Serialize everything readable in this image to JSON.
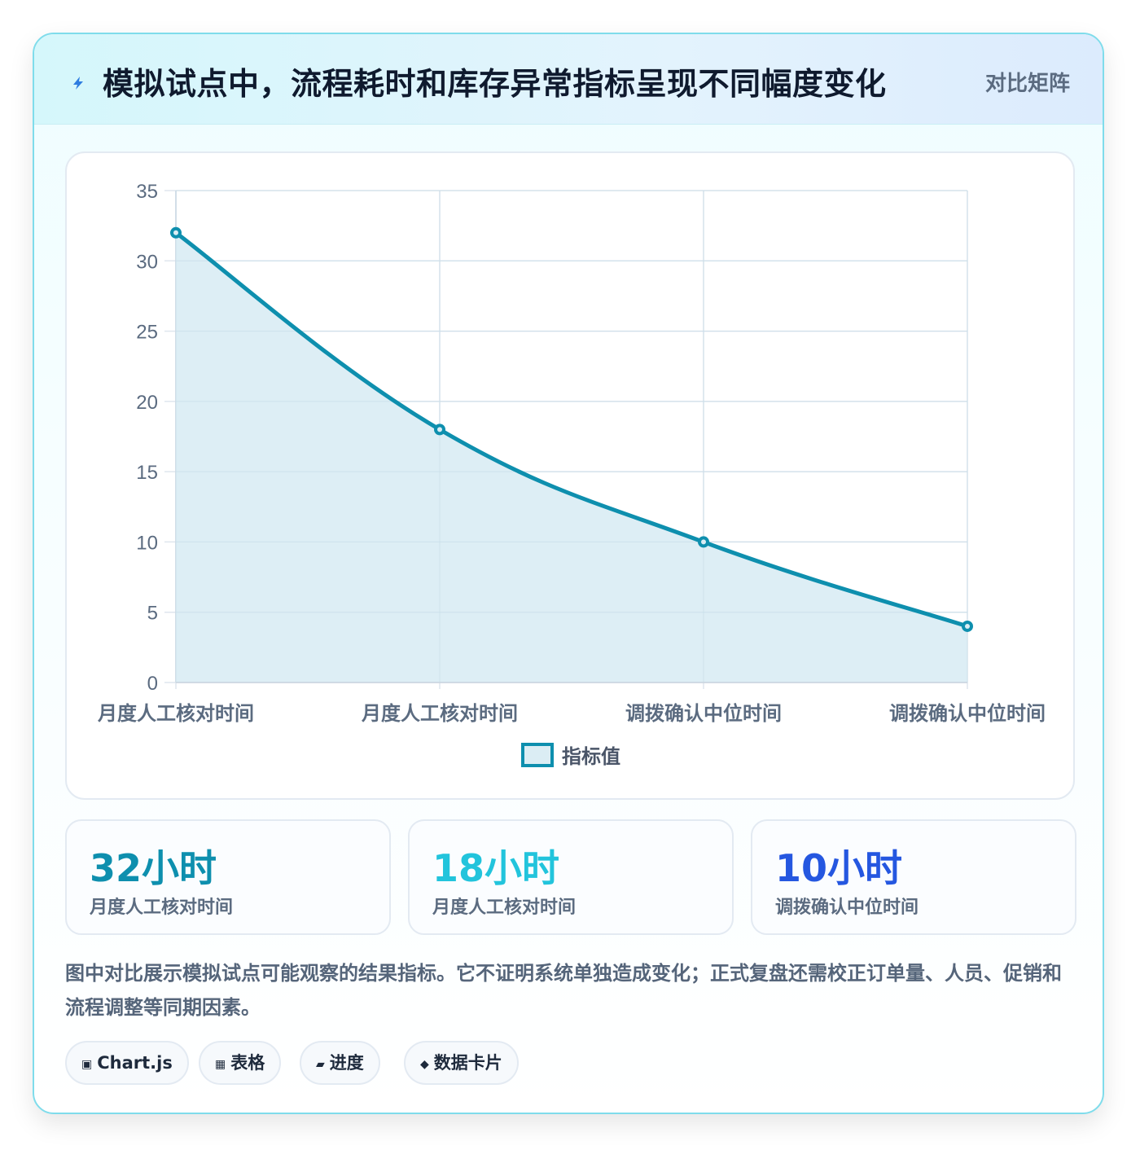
{
  "header": {
    "title": "模拟试点中，流程耗时和库存异常指标呈现不同幅度变化",
    "tag": "对比矩阵",
    "icon": "lightning-icon"
  },
  "chart_data": {
    "type": "line",
    "categories": [
      "月度人工核对时间",
      "月度人工核对时间",
      "调拨确认中位时间",
      "调拨确认中位时间"
    ],
    "series": [
      {
        "name": "指标值",
        "values": [
          32,
          18,
          10,
          4
        ]
      }
    ],
    "ylim": [
      0,
      35
    ],
    "yticks": [
      0,
      5,
      10,
      15,
      20,
      25,
      30,
      35
    ],
    "fill": true,
    "grid": true,
    "legend_position": "bottom",
    "colors": {
      "line": "#0e8fae",
      "fill": "#dbedf4",
      "grid": "#dfe6ee",
      "tick": "#5b6b80"
    }
  },
  "stats": [
    {
      "value": "32小时",
      "label": "月度人工核对时间",
      "color": "#0e8fae"
    },
    {
      "value": "18小时",
      "label": "月度人工核对时间",
      "color": "#22c4dc"
    },
    {
      "value": "10小时",
      "label": "调拨确认中位时间",
      "color": "#2557e0"
    }
  ],
  "note": "图中对比展示模拟试点可能观察的结果指标。它不证明系统单独造成变化；正式复盘还需校正订单量、人员、促销和流程调整等同期因素。",
  "chips": [
    {
      "icon": "▣",
      "label": "Chart.js"
    },
    {
      "icon": "▦",
      "label": "表格"
    },
    {
      "icon": "▰",
      "label": "进度"
    },
    {
      "icon": "◆",
      "label": "数据卡片"
    }
  ]
}
